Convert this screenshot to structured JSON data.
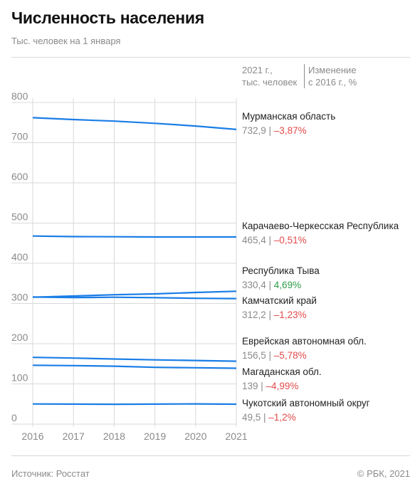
{
  "header": {
    "title": "Численность населения",
    "subtitle": "Тыс. человек на 1 января"
  },
  "columns": {
    "value_head": "2021 г.,\nтыс. человек",
    "change_head": "Изменение\nс 2016 г., %"
  },
  "footer": {
    "source": "Источник: Росстат",
    "copyright": "© РБК, 2021"
  },
  "colors": {
    "line": "#1a7de6",
    "negative": "#e24a4a",
    "positive": "#2e9b4a",
    "grid": "#d9d9d9"
  },
  "chart_data": {
    "type": "line",
    "x": [
      "2016",
      "2017",
      "2018",
      "2019",
      "2020",
      "2021"
    ],
    "ylim": [
      0,
      800
    ],
    "yticks": [
      "0",
      "100",
      "200",
      "300",
      "400",
      "500",
      "600",
      "700",
      "800"
    ],
    "grid": true,
    "series": [
      {
        "name": "Мурманская область",
        "values": [
          762.2,
          757.6,
          753.6,
          748.1,
          741.4,
          732.9
        ],
        "value_label": "732,9",
        "change_label": "–3,87%",
        "sign": "neg"
      },
      {
        "name": "Карачаево-Черкесская Республика",
        "values": [
          467.8,
          466.3,
          466.0,
          465.5,
          465.5,
          465.4
        ],
        "value_label": "465,4",
        "change_label": "–0,51%",
        "sign": "neg"
      },
      {
        "name": "Республика Тыва",
        "values": [
          315.6,
          318.5,
          321.7,
          323.9,
          327.4,
          330.4
        ],
        "value_label": "330,4",
        "change_label": "4,69%",
        "sign": "pos"
      },
      {
        "name": "Камчатский край",
        "values": [
          316.1,
          314.7,
          315.6,
          314.6,
          313.0,
          312.2
        ],
        "value_label": "312,2",
        "change_label": "–1,23%",
        "sign": "neg"
      },
      {
        "name": "Еврейская автономная обл.",
        "values": [
          166.1,
          164.2,
          162.0,
          159.9,
          158.3,
          156.5
        ],
        "value_label": "156,5",
        "change_label": "–5,78%",
        "sign": "neg"
      },
      {
        "name": "Магаданская обл.",
        "values": [
          146.3,
          145.5,
          144.1,
          141.2,
          140.1,
          139.0
        ],
        "value_label": "139",
        "change_label": "–4,99%",
        "sign": "neg"
      },
      {
        "name": "Чукотский автономный округ",
        "values": [
          50.1,
          49.8,
          49.3,
          49.7,
          50.3,
          49.5
        ],
        "value_label": "49,5",
        "change_label": "–1,2%",
        "sign": "neg"
      }
    ]
  }
}
